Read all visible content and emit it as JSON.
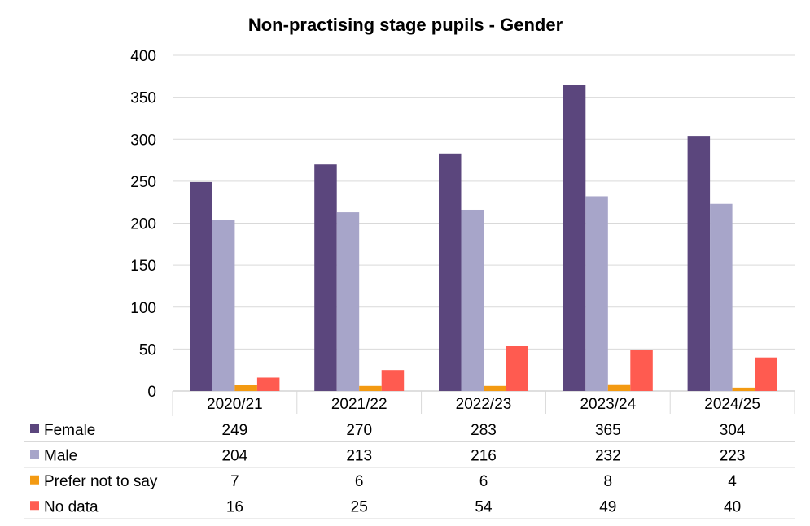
{
  "chart_data": {
    "type": "bar",
    "title": "Non-practising stage pupils - Gender",
    "categories": [
      "2020/21",
      "2021/22",
      "2022/23",
      "2023/24",
      "2024/25"
    ],
    "series": [
      {
        "name": "Female",
        "color": "#5b467d",
        "values": [
          249,
          270,
          283,
          365,
          304
        ]
      },
      {
        "name": "Male",
        "color": "#a7a5c9",
        "values": [
          204,
          213,
          216,
          232,
          223
        ]
      },
      {
        "name": "Prefer not to say",
        "color": "#f39a12",
        "values": [
          7,
          6,
          6,
          8,
          4
        ]
      },
      {
        "name": "No data",
        "color": "#ff5b50",
        "values": [
          16,
          25,
          54,
          49,
          40
        ]
      }
    ],
    "yticks": [
      0,
      50,
      100,
      150,
      200,
      250,
      300,
      350,
      400
    ],
    "ylim": [
      0,
      400
    ],
    "grid": true,
    "legend": "data-table-below"
  }
}
